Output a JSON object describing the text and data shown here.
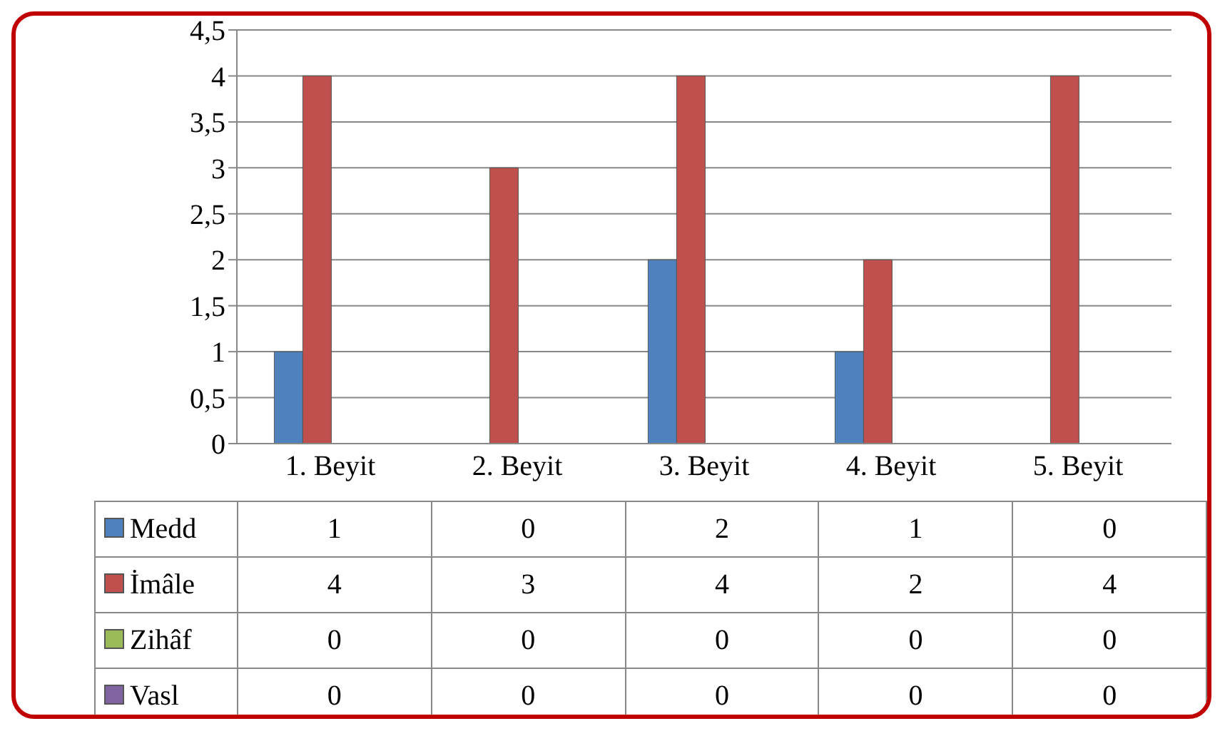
{
  "chart_data": {
    "type": "bar",
    "categories": [
      "1. Beyit",
      "2. Beyit",
      "3. Beyit",
      "4. Beyit",
      "5. Beyit"
    ],
    "series": [
      {
        "name": "Medd",
        "color": "#4f81bd",
        "values": [
          1,
          0,
          2,
          1,
          0
        ]
      },
      {
        "name": "İmâle",
        "color": "#c0504d",
        "values": [
          4,
          3,
          4,
          2,
          4
        ]
      },
      {
        "name": "Zihâf",
        "color": "#9bbb59",
        "values": [
          0,
          0,
          0,
          0,
          0
        ]
      },
      {
        "name": "Vasl",
        "color": "#8064a2",
        "values": [
          0,
          0,
          0,
          0,
          0
        ]
      }
    ],
    "ylim": [
      0,
      4.5
    ],
    "yticks": [
      0,
      {
        "value": 0.5,
        "label": "0,5"
      },
      1,
      {
        "value": 1.5,
        "label": "1,5"
      },
      2,
      {
        "value": 2.5,
        "label": "2,5"
      },
      3,
      {
        "value": 3.5,
        "label": "3,5"
      },
      4,
      {
        "value": 4.5,
        "label": "4,5"
      }
    ],
    "grid": "y",
    "legend": "bottom",
    "data_labels": true
  }
}
